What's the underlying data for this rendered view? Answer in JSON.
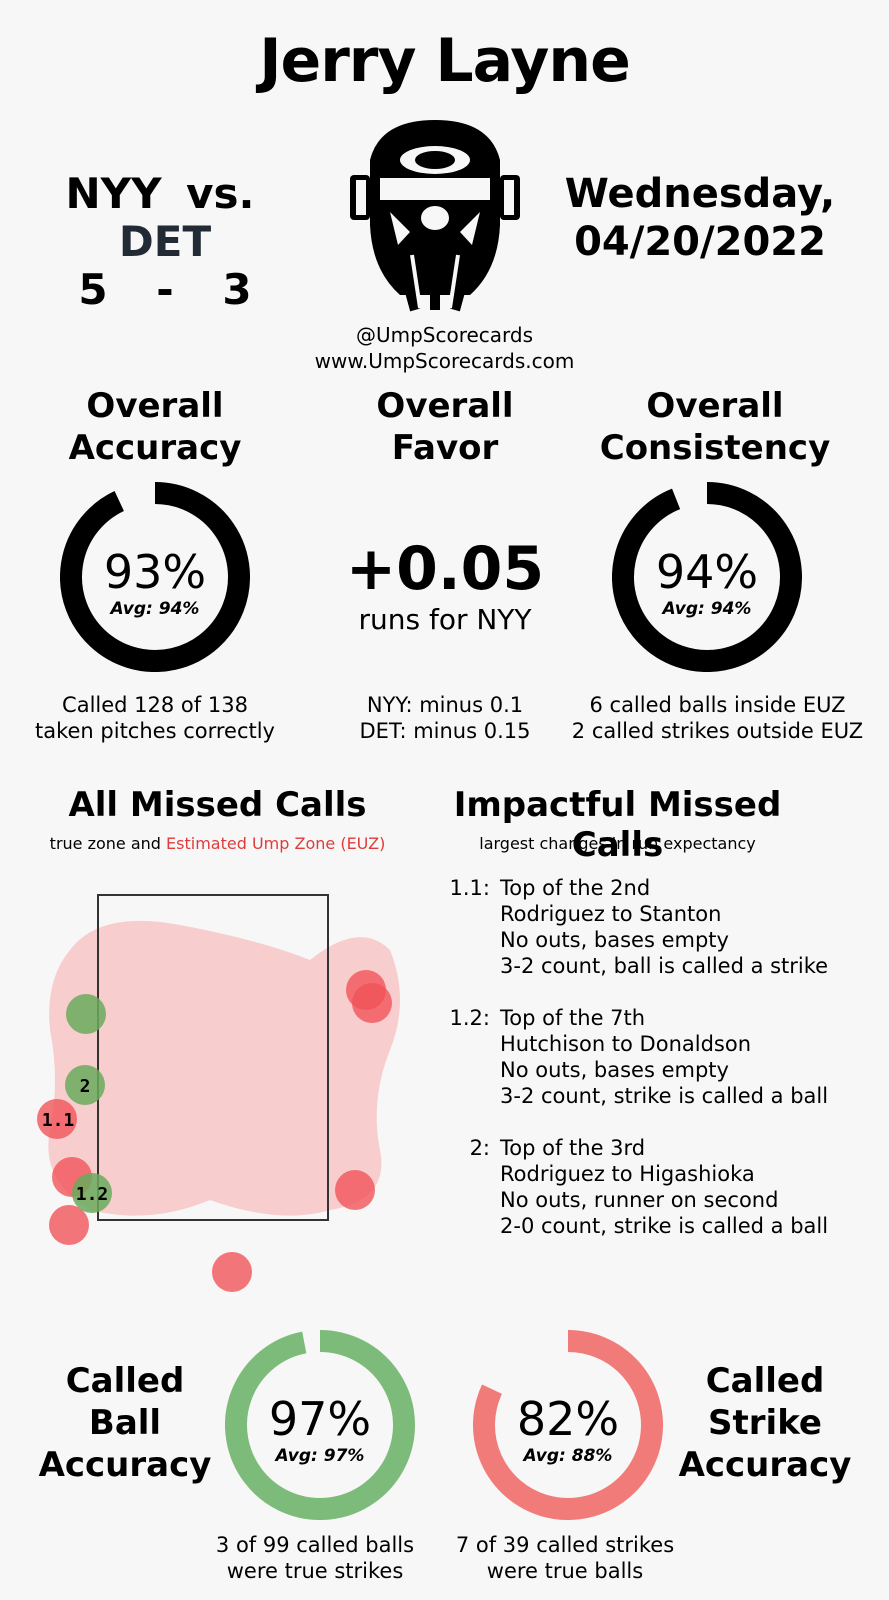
{
  "umpire": "Jerry Layne",
  "game": {
    "away": "NYY",
    "vs": "vs.",
    "home": "DET",
    "away_score": "5",
    "dash": "-",
    "home_score": "3"
  },
  "date": {
    "weekday": "Wednesday,",
    "date": "04/20/2022"
  },
  "credits": {
    "handle": "@UmpScorecards",
    "site": "www.UmpScorecards.com"
  },
  "accuracy": {
    "title1": "Overall",
    "title2": "Accuracy",
    "value": "93%",
    "fraction": 0.93,
    "avg": "Avg: 94%",
    "line1": "Called 128 of 138",
    "line2": "taken pitches correctly"
  },
  "favor": {
    "title1": "Overall",
    "title2": "Favor",
    "value": "+0.05",
    "unit": "runs for NYY",
    "line1": "NYY: minus 0.1",
    "line2": "DET: minus 0.15"
  },
  "consistency": {
    "title1": "Overall",
    "title2": "Consistency",
    "value": "94%",
    "fraction": 0.94,
    "avg": "Avg: 94%",
    "line1": "6 called balls inside EUZ",
    "line2": "2 called strikes outside EUZ"
  },
  "missed": {
    "title": "All Missed Calls",
    "sub1": "true zone and ",
    "sub2": "Estimated Ump Zone (EUZ)"
  },
  "impactful": {
    "title": "Impactful Missed Calls",
    "subtitle": "largest changes in run expectancy",
    "calls": [
      {
        "id": "1.1:",
        "lines": [
          "Top of the 2nd",
          "Rodriguez to Stanton",
          "No outs, bases empty",
          "3-2 count, ball is called a strike"
        ]
      },
      {
        "id": "1.2:",
        "lines": [
          "Top of the 7th",
          "Hutchison to Donaldson",
          "No outs, bases empty",
          "3-2 count, strike is called a ball"
        ]
      },
      {
        "id": "2:",
        "lines": [
          "Top of the 3rd",
          "Rodriguez to Higashioka",
          "No outs, runner on second",
          "2-0 count, strike is called a ball"
        ]
      }
    ]
  },
  "plot_labels": {
    "label_2": "2",
    "label_11": "1.1",
    "label_12": "1.2"
  },
  "ball_acc": {
    "title1": "Called",
    "title2": "Ball",
    "title3": "Accuracy",
    "value": "97%",
    "fraction": 0.97,
    "avg": "Avg: 97%",
    "line1": "3 of 99 called balls",
    "line2": "were true strikes",
    "color": "#7dbb7b"
  },
  "strike_acc": {
    "title1": "Called",
    "title2": "Strike",
    "title3": "Accuracy",
    "value": "82%",
    "fraction": 0.82,
    "avg": "Avg: 88%",
    "line1": "7 of 39 called strikes",
    "line2": "were true balls",
    "color": "#f07b78"
  },
  "colors": {
    "ring": "#000000",
    "euz": "#f8c6c6",
    "miss_red": "#f0545a",
    "miss_green": "#6aaa5c"
  }
}
